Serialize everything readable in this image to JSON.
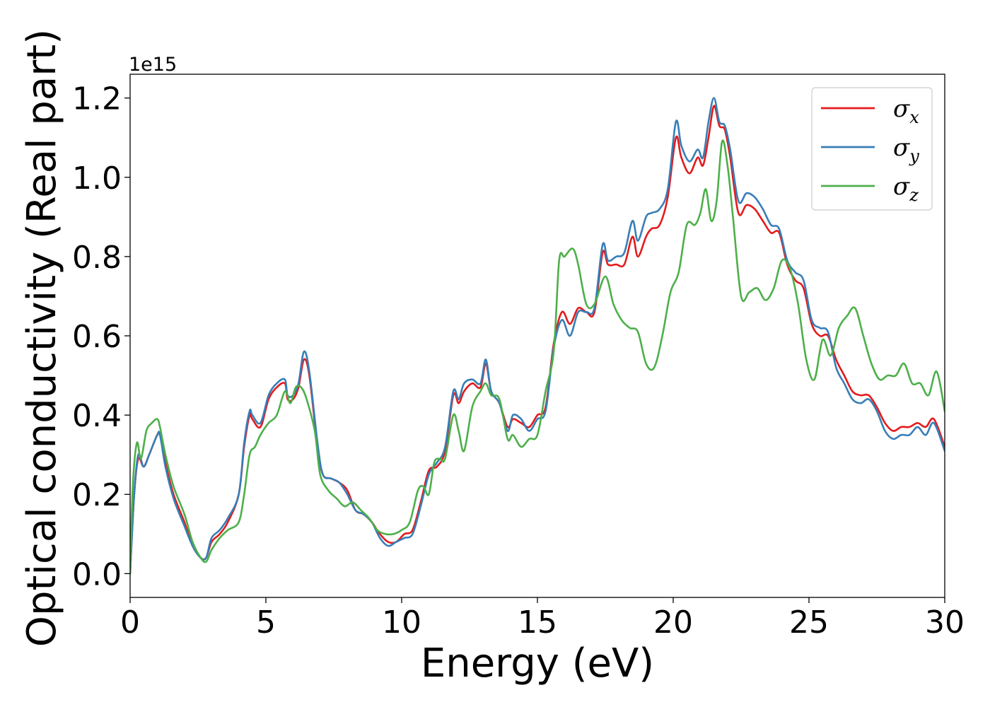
{
  "chart_data": {
    "type": "line",
    "xlabel": "Energy (eV)",
    "ylabel": "Optical conductivity (Real part)",
    "y_offset_text": "1e15",
    "xlim": [
      0,
      30
    ],
    "ylim": [
      -0.06,
      1.26
    ],
    "x_ticks": [
      0,
      5,
      10,
      15,
      20,
      25,
      30
    ],
    "x_tick_labels": [
      "0",
      "5",
      "10",
      "15",
      "20",
      "25",
      "30"
    ],
    "y_ticks": [
      0.0,
      0.2,
      0.4,
      0.6,
      0.8,
      1.0,
      1.2
    ],
    "y_tick_labels": [
      "0.0",
      "0.2",
      "0.4",
      "0.6",
      "0.8",
      "1.0",
      "1.2"
    ],
    "grid": false,
    "legend_position": "top-right",
    "series": [
      {
        "name": "σx",
        "legend_symbol": "σ",
        "legend_subscript": "x",
        "color": "#e41a1c",
        "x": [
          0,
          0.15,
          0.3,
          0.5,
          0.7,
          1.0,
          1.1,
          1.3,
          1.6,
          2.0,
          2.3,
          2.6,
          2.8,
          3.0,
          3.3,
          3.6,
          4.0,
          4.2,
          4.4,
          4.5,
          4.8,
          5.1,
          5.4,
          5.7,
          5.8,
          6.0,
          6.2,
          6.4,
          6.6,
          6.9,
          7.1,
          7.4,
          7.7,
          8.0,
          8.3,
          8.6,
          8.9,
          9.2,
          9.5,
          9.8,
          10.1,
          10.4,
          10.7,
          11.0,
          11.3,
          11.6,
          11.9,
          12.1,
          12.3,
          12.6,
          12.9,
          13.1,
          13.3,
          13.6,
          13.9,
          14.1,
          14.4,
          14.7,
          15.0,
          15.3,
          15.6,
          15.9,
          16.2,
          16.5,
          16.8,
          17.1,
          17.4,
          17.6,
          17.9,
          18.2,
          18.5,
          18.7,
          19.0,
          19.2,
          19.5,
          19.8,
          20.1,
          20.3,
          20.6,
          20.9,
          21.1,
          21.3,
          21.5,
          21.7,
          21.9,
          22.1,
          22.4,
          22.7,
          23.0,
          23.3,
          23.6,
          23.9,
          24.2,
          24.5,
          24.8,
          25.1,
          25.4,
          25.7,
          26.0,
          26.3,
          26.6,
          26.9,
          27.2,
          27.5,
          27.8,
          28.1,
          28.4,
          28.7,
          29.0,
          29.3,
          29.6,
          30.0
        ],
        "values": [
          0.0,
          0.2,
          0.29,
          0.27,
          0.3,
          0.35,
          0.35,
          0.28,
          0.2,
          0.13,
          0.07,
          0.04,
          0.04,
          0.08,
          0.1,
          0.13,
          0.2,
          0.32,
          0.4,
          0.39,
          0.37,
          0.44,
          0.47,
          0.48,
          0.44,
          0.44,
          0.47,
          0.54,
          0.5,
          0.32,
          0.25,
          0.24,
          0.23,
          0.21,
          0.16,
          0.15,
          0.13,
          0.1,
          0.08,
          0.08,
          0.1,
          0.11,
          0.18,
          0.26,
          0.27,
          0.31,
          0.45,
          0.43,
          0.46,
          0.48,
          0.47,
          0.53,
          0.46,
          0.43,
          0.37,
          0.39,
          0.38,
          0.37,
          0.4,
          0.42,
          0.58,
          0.66,
          0.63,
          0.67,
          0.66,
          0.66,
          0.81,
          0.78,
          0.78,
          0.78,
          0.85,
          0.8,
          0.85,
          0.87,
          0.88,
          0.95,
          1.1,
          1.05,
          1.01,
          1.05,
          1.03,
          1.1,
          1.18,
          1.13,
          1.12,
          1.05,
          0.91,
          0.93,
          0.92,
          0.89,
          0.86,
          0.86,
          0.78,
          0.74,
          0.72,
          0.63,
          0.6,
          0.6,
          0.54,
          0.5,
          0.46,
          0.45,
          0.45,
          0.42,
          0.38,
          0.36,
          0.37,
          0.37,
          0.38,
          0.37,
          0.39,
          0.32
        ]
      },
      {
        "name": "σy",
        "legend_symbol": "σ",
        "legend_subscript": "y",
        "color": "#377eb8",
        "x": [
          0,
          0.15,
          0.3,
          0.5,
          0.7,
          1.0,
          1.1,
          1.3,
          1.6,
          2.0,
          2.3,
          2.6,
          2.8,
          3.0,
          3.3,
          3.6,
          4.0,
          4.2,
          4.4,
          4.5,
          4.8,
          5.1,
          5.4,
          5.7,
          5.8,
          6.0,
          6.2,
          6.4,
          6.6,
          6.9,
          7.1,
          7.4,
          7.7,
          8.0,
          8.3,
          8.6,
          8.9,
          9.2,
          9.5,
          9.8,
          10.1,
          10.4,
          10.7,
          11.0,
          11.3,
          11.6,
          11.9,
          12.1,
          12.3,
          12.6,
          12.9,
          13.1,
          13.3,
          13.6,
          13.9,
          14.1,
          14.4,
          14.7,
          15.0,
          15.3,
          15.6,
          15.9,
          16.2,
          16.5,
          16.8,
          17.1,
          17.4,
          17.6,
          17.9,
          18.2,
          18.5,
          18.7,
          19.0,
          19.2,
          19.5,
          19.8,
          20.1,
          20.3,
          20.6,
          20.9,
          21.1,
          21.3,
          21.5,
          21.7,
          21.9,
          22.1,
          22.4,
          22.7,
          23.0,
          23.3,
          23.6,
          23.9,
          24.2,
          24.5,
          24.8,
          25.1,
          25.4,
          25.7,
          26.0,
          26.3,
          26.6,
          26.9,
          27.2,
          27.5,
          27.8,
          28.1,
          28.4,
          28.7,
          29.0,
          29.3,
          29.6,
          30.0
        ],
        "values": [
          0.0,
          0.2,
          0.3,
          0.27,
          0.3,
          0.35,
          0.35,
          0.27,
          0.19,
          0.12,
          0.07,
          0.04,
          0.04,
          0.09,
          0.11,
          0.14,
          0.2,
          0.33,
          0.41,
          0.4,
          0.38,
          0.45,
          0.48,
          0.49,
          0.45,
          0.45,
          0.48,
          0.56,
          0.51,
          0.33,
          0.25,
          0.24,
          0.23,
          0.2,
          0.16,
          0.15,
          0.13,
          0.09,
          0.07,
          0.08,
          0.09,
          0.1,
          0.17,
          0.25,
          0.28,
          0.32,
          0.46,
          0.44,
          0.48,
          0.49,
          0.48,
          0.54,
          0.46,
          0.43,
          0.36,
          0.4,
          0.39,
          0.36,
          0.39,
          0.41,
          0.57,
          0.64,
          0.6,
          0.66,
          0.66,
          0.67,
          0.83,
          0.79,
          0.8,
          0.81,
          0.89,
          0.84,
          0.9,
          0.91,
          0.92,
          0.97,
          1.14,
          1.08,
          1.04,
          1.07,
          1.05,
          1.14,
          1.2,
          1.14,
          1.13,
          1.07,
          0.94,
          0.96,
          0.95,
          0.92,
          0.88,
          0.87,
          0.79,
          0.76,
          0.74,
          0.64,
          0.62,
          0.61,
          0.52,
          0.48,
          0.44,
          0.43,
          0.44,
          0.41,
          0.36,
          0.34,
          0.35,
          0.35,
          0.37,
          0.35,
          0.38,
          0.31
        ]
      },
      {
        "name": "σz",
        "legend_symbol": "σ",
        "legend_subscript": "z",
        "color": "#4daf4a",
        "x": [
          0,
          0.1,
          0.25,
          0.4,
          0.6,
          0.8,
          1.0,
          1.1,
          1.3,
          1.6,
          2.0,
          2.3,
          2.6,
          2.8,
          3.0,
          3.3,
          3.6,
          4.0,
          4.2,
          4.4,
          4.6,
          4.8,
          5.1,
          5.4,
          5.7,
          5.9,
          6.1,
          6.3,
          6.5,
          6.8,
          7.0,
          7.3,
          7.6,
          7.9,
          8.2,
          8.5,
          8.8,
          9.1,
          9.4,
          9.7,
          10.0,
          10.3,
          10.6,
          10.8,
          11.0,
          11.2,
          11.4,
          11.6,
          11.9,
          12.1,
          12.3,
          12.6,
          12.9,
          13.1,
          13.3,
          13.6,
          13.9,
          14.1,
          14.4,
          14.7,
          15.0,
          15.3,
          15.6,
          15.8,
          16.0,
          16.3,
          16.5,
          16.8,
          17.1,
          17.5,
          17.8,
          18.1,
          18.4,
          18.7,
          19.0,
          19.3,
          19.6,
          19.9,
          20.2,
          20.5,
          20.8,
          21.0,
          21.2,
          21.4,
          21.6,
          21.8,
          22.0,
          22.2,
          22.5,
          22.8,
          23.1,
          23.4,
          23.7,
          24.0,
          24.3,
          24.6,
          24.9,
          25.2,
          25.5,
          25.8,
          26.1,
          26.4,
          26.7,
          27.0,
          27.3,
          27.6,
          27.9,
          28.2,
          28.5,
          28.8,
          29.1,
          29.4,
          29.7,
          30.0
        ],
        "values": [
          0.0,
          0.22,
          0.33,
          0.29,
          0.36,
          0.38,
          0.39,
          0.37,
          0.3,
          0.22,
          0.15,
          0.08,
          0.04,
          0.03,
          0.06,
          0.09,
          0.11,
          0.13,
          0.2,
          0.3,
          0.32,
          0.35,
          0.38,
          0.4,
          0.46,
          0.43,
          0.47,
          0.47,
          0.44,
          0.36,
          0.25,
          0.21,
          0.19,
          0.17,
          0.18,
          0.16,
          0.14,
          0.11,
          0.1,
          0.1,
          0.11,
          0.13,
          0.21,
          0.22,
          0.2,
          0.28,
          0.29,
          0.29,
          0.4,
          0.36,
          0.31,
          0.42,
          0.46,
          0.48,
          0.45,
          0.44,
          0.34,
          0.35,
          0.32,
          0.34,
          0.35,
          0.46,
          0.56,
          0.79,
          0.8,
          0.82,
          0.78,
          0.68,
          0.68,
          0.75,
          0.68,
          0.64,
          0.62,
          0.61,
          0.53,
          0.52,
          0.6,
          0.71,
          0.76,
          0.88,
          0.88,
          0.91,
          0.97,
          0.89,
          0.94,
          1.09,
          1.03,
          0.9,
          0.7,
          0.71,
          0.72,
          0.69,
          0.72,
          0.79,
          0.77,
          0.68,
          0.54,
          0.49,
          0.59,
          0.55,
          0.62,
          0.65,
          0.67,
          0.6,
          0.53,
          0.49,
          0.5,
          0.5,
          0.53,
          0.48,
          0.48,
          0.45,
          0.51,
          0.41
        ]
      }
    ]
  }
}
